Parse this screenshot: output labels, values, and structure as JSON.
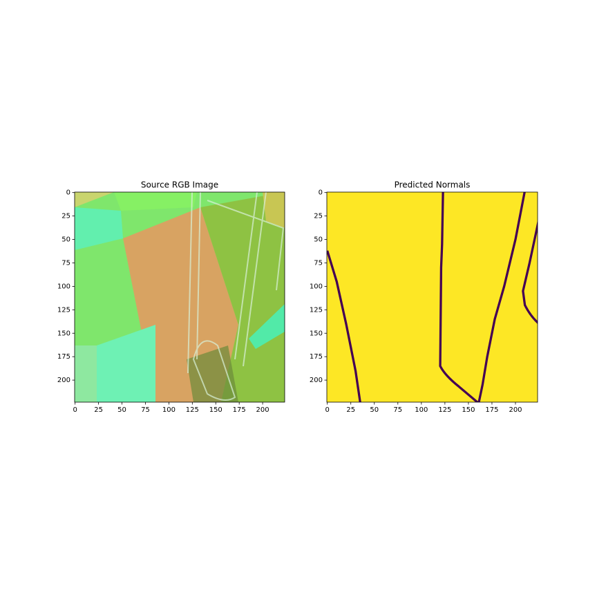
{
  "chart_data": [
    {
      "type": "image",
      "title": "Source RGB Image",
      "xlim": [
        -0.5,
        223.5
      ],
      "ylim": [
        223.5,
        -0.5
      ],
      "xticks": [
        0,
        25,
        50,
        75,
        100,
        125,
        150,
        175,
        200
      ],
      "yticks": [
        0,
        25,
        50,
        75,
        100,
        125,
        150,
        175,
        200
      ]
    },
    {
      "type": "image",
      "title": "Predicted Normals",
      "xlim": [
        -0.5,
        223.5
      ],
      "ylim": [
        223.5,
        -0.5
      ],
      "xticks": [
        0,
        25,
        50,
        75,
        100,
        125,
        150,
        175,
        200
      ],
      "yticks": [
        0,
        25,
        50,
        75,
        100,
        125,
        150,
        175,
        200
      ]
    }
  ]
}
